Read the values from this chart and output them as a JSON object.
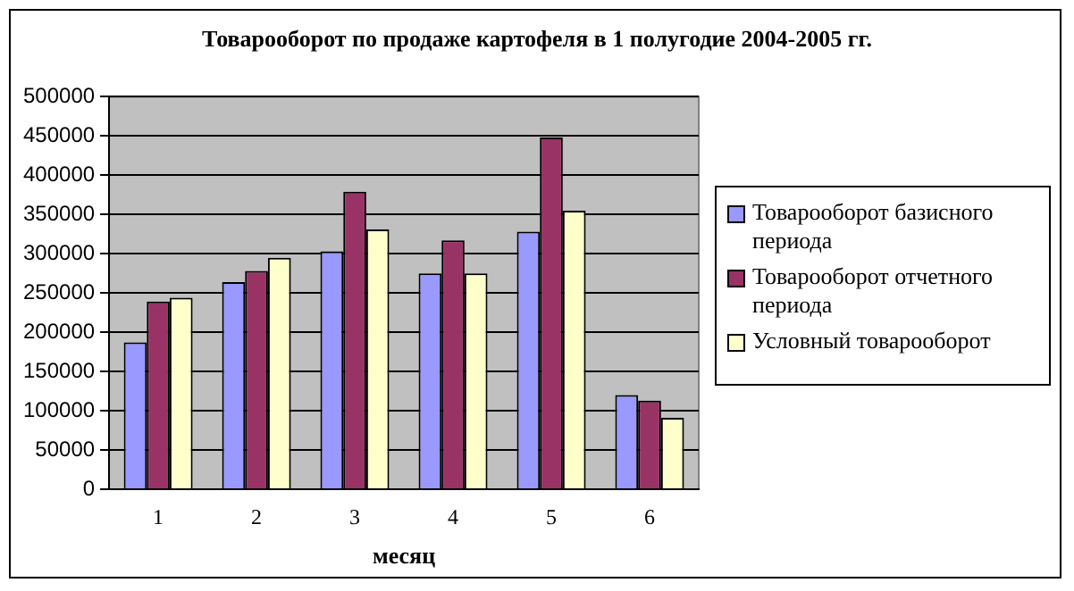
{
  "chart_data": {
    "type": "bar",
    "title": "Товарооборот по продаже картофеля в 1 полугодие 2004-2005 гг.",
    "xlabel": "месяц",
    "categories": [
      "1",
      "2",
      "3",
      "4",
      "5",
      "6"
    ],
    "series": [
      {
        "name": "Товарооборот базисного периода",
        "color": "#9999ff",
        "values": [
          187000,
          264000,
          303000,
          275000,
          328000,
          120000
        ]
      },
      {
        "name": "Товарооборот отчетного периода",
        "color": "#993366",
        "values": [
          239000,
          278000,
          379000,
          317000,
          448000,
          113000
        ]
      },
      {
        "name": "Условный товарооборот",
        "color": "#ffffcc",
        "values": [
          244000,
          295000,
          331000,
          275000,
          355000,
          91000
        ]
      }
    ],
    "ylim": [
      0,
      500000
    ],
    "yticks": [
      0,
      50000,
      100000,
      150000,
      200000,
      250000,
      300000,
      350000,
      400000,
      450000,
      500000
    ],
    "grid": "y",
    "legend": "right"
  }
}
